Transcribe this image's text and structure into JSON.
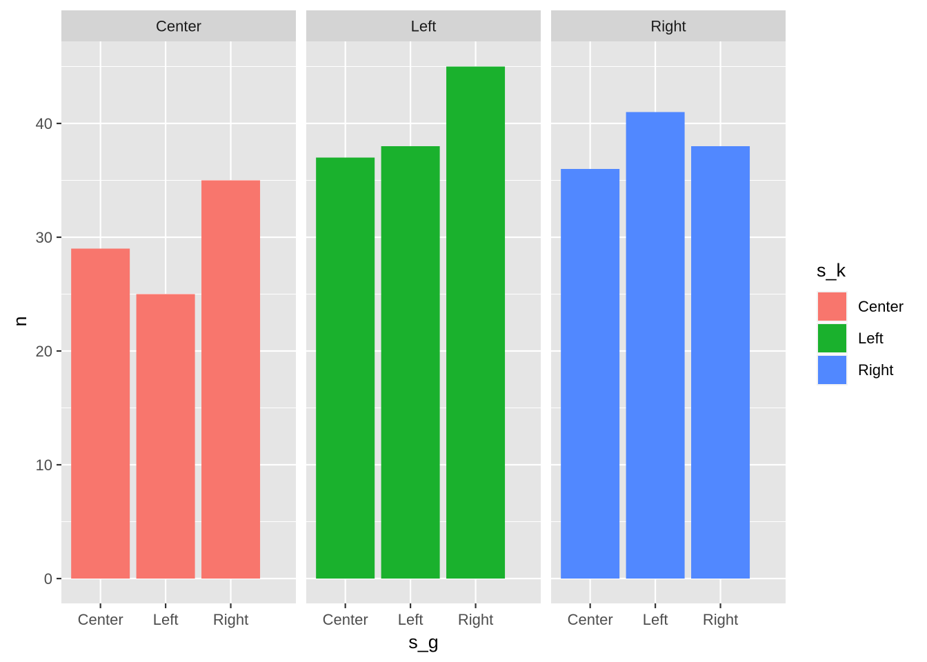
{
  "chart_data": {
    "type": "bar",
    "facet_variable": "s_k",
    "panels": [
      {
        "strip": "Center",
        "categories": [
          "Center",
          "Left",
          "Right"
        ],
        "values": [
          29,
          25,
          35
        ]
      },
      {
        "strip": "Left",
        "categories": [
          "Center",
          "Left",
          "Right"
        ],
        "values": [
          37,
          38,
          45
        ]
      },
      {
        "strip": "Right",
        "categories": [
          "Center",
          "Left",
          "Right"
        ],
        "values": [
          36,
          41,
          38
        ]
      }
    ],
    "xlabel": "s_g",
    "ylabel": "n",
    "ylim": [
      0,
      47.25
    ],
    "yticks": [
      0,
      10,
      20,
      30,
      40
    ],
    "grid": true,
    "legend": {
      "title": "s_k",
      "position": "right",
      "entries": [
        {
          "label": "Center",
          "color": "#F8766D"
        },
        {
          "label": "Left",
          "color": "#1AB12D"
        },
        {
          "label": "Right",
          "color": "#5188FF"
        }
      ]
    },
    "colors": {
      "panel_background": "#E5E5E5",
      "strip_background": "#D4D4D4",
      "grid": "#FFFFFF"
    }
  }
}
